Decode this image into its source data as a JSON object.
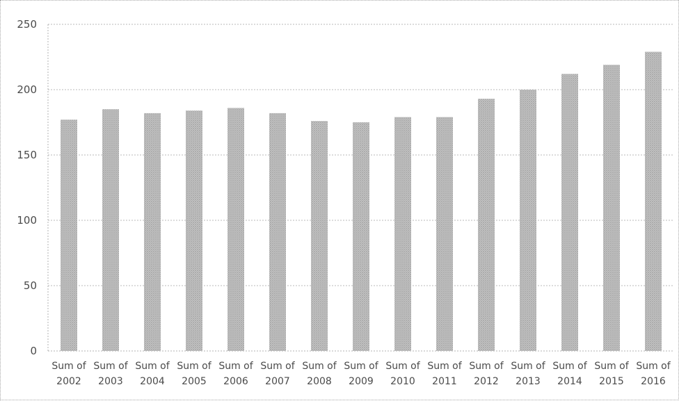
{
  "chart_data": {
    "type": "bar",
    "title": "",
    "xlabel": "",
    "ylabel": "",
    "categories": [
      [
        "Sum of",
        "2002"
      ],
      [
        "Sum of",
        "2003"
      ],
      [
        "Sum of",
        "2004"
      ],
      [
        "Sum of",
        "2005"
      ],
      [
        "Sum of",
        "2006"
      ],
      [
        "Sum of",
        "2007"
      ],
      [
        "Sum of",
        "2008"
      ],
      [
        "Sum of",
        "2009"
      ],
      [
        "Sum of",
        "2010"
      ],
      [
        "Sum of",
        "2011"
      ],
      [
        "Sum of",
        "2012"
      ],
      [
        "Sum of",
        "2013"
      ],
      [
        "Sum of",
        "2014"
      ],
      [
        "Sum of",
        "2015"
      ],
      [
        "Sum of",
        "2016"
      ]
    ],
    "values": [
      177,
      185,
      182,
      184,
      186,
      182,
      176,
      175,
      179,
      179,
      193,
      200,
      212,
      219,
      229
    ],
    "ylim": [
      0,
      250
    ],
    "yticks": [
      0,
      50,
      100,
      150,
      200,
      250
    ],
    "grid": true,
    "legend": "none",
    "colors": {
      "bar_fill": "#bdbdbd",
      "bar_dots": "#8f8f8f",
      "grid": "#b9b9b9",
      "text": "#4a4a4a"
    }
  }
}
